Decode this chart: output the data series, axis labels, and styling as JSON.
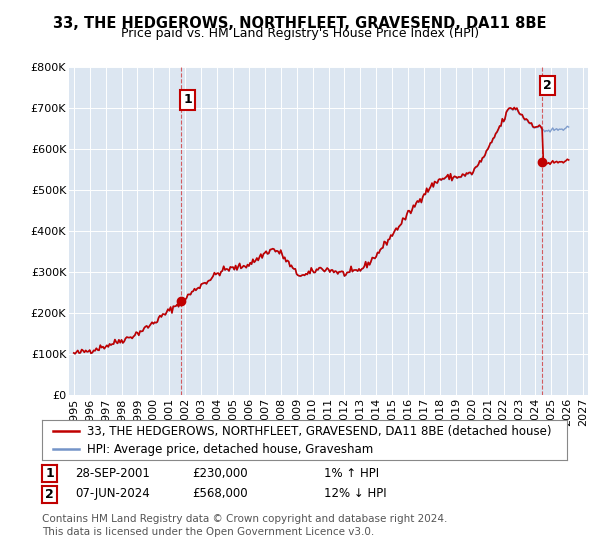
{
  "title": "33, THE HEDGEROWS, NORTHFLEET, GRAVESEND, DA11 8BE",
  "subtitle": "Price paid vs. HM Land Registry's House Price Index (HPI)",
  "ylim": [
    0,
    800000
  ],
  "xlim_start": 1994.7,
  "xlim_end": 2027.3,
  "yticks": [
    0,
    100000,
    200000,
    300000,
    400000,
    500000,
    600000,
    700000,
    800000
  ],
  "ytick_labels": [
    "£0",
    "£100K",
    "£200K",
    "£300K",
    "£400K",
    "£500K",
    "£600K",
    "£700K",
    "£800K"
  ],
  "xticks": [
    1995,
    1996,
    1997,
    1998,
    1999,
    2000,
    2001,
    2002,
    2003,
    2004,
    2005,
    2006,
    2007,
    2008,
    2009,
    2010,
    2011,
    2012,
    2013,
    2014,
    2015,
    2016,
    2017,
    2018,
    2019,
    2020,
    2021,
    2022,
    2023,
    2024,
    2025,
    2026,
    2027
  ],
  "background_color": "#ffffff",
  "plot_bg_color": "#dce6f1",
  "grid_color": "#ffffff",
  "hpi_color": "#7494c8",
  "price_color": "#c00000",
  "sale1_x": 2001.75,
  "sale1_y": 230000,
  "sale2_x": 2024.44,
  "sale2_y": 568000,
  "legend_line1": "33, THE HEDGEROWS, NORTHFLEET, GRAVESEND, DA11 8BE (detached house)",
  "legend_line2": "HPI: Average price, detached house, Gravesham",
  "annotation1_label": "1",
  "annotation1_date": "28-SEP-2001",
  "annotation1_price": "£230,000",
  "annotation1_hpi": "1% ↑ HPI",
  "annotation2_label": "2",
  "annotation2_date": "07-JUN-2024",
  "annotation2_price": "£568,000",
  "annotation2_hpi": "12% ↓ HPI",
  "footer": "Contains HM Land Registry data © Crown copyright and database right 2024.\nThis data is licensed under the Open Government Licence v3.0.",
  "title_fontsize": 10.5,
  "subtitle_fontsize": 9,
  "tick_fontsize": 8,
  "legend_fontsize": 8.5,
  "annotation_fontsize": 8.5,
  "footer_fontsize": 7.5
}
